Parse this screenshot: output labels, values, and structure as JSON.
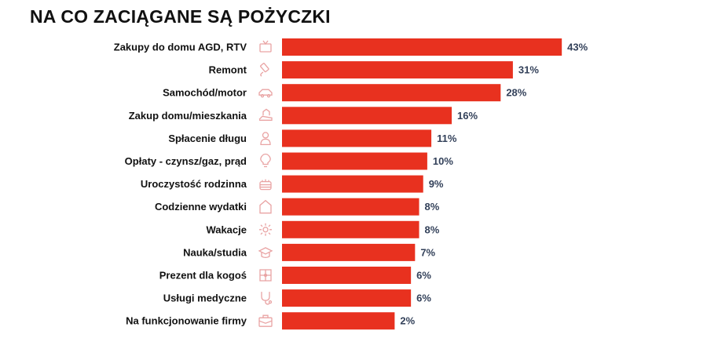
{
  "chart_data": {
    "type": "bar",
    "orientation": "horizontal",
    "title": "NA CO ZACIĄGANE SĄ POŻYCZKI",
    "categories": [
      "Zakupy do domu AGD, RTV",
      "Remont",
      "Samochód/motor",
      "Zakup domu/mieszkania",
      "Spłacenie długu",
      "Opłaty - czynsz/gaz, prąd",
      "Uroczystość rodzinna",
      "Codzienne wydatki",
      "Wakacje",
      "Nauka/studia",
      "Prezent dla kogoś",
      "Usługi medyczne",
      "Na funkcjonowanie firmy"
    ],
    "values": [
      43,
      31,
      28,
      16,
      11,
      10,
      9,
      8,
      8,
      7,
      6,
      6,
      2
    ],
    "labels": [
      "43%",
      "31%",
      "28%",
      "16%",
      "11%",
      "10%",
      "9%",
      "8%",
      "8%",
      "7%",
      "6%",
      "6%",
      "2%"
    ],
    "icons": [
      "tv-icon",
      "paint-roller-icon",
      "car-icon",
      "house-hand-icon",
      "person-icon",
      "lightbulb-icon",
      "cake-icon",
      "house-icon",
      "sun-icon",
      "graduation-cap-icon",
      "gift-icon",
      "stethoscope-icon",
      "briefcase-icon"
    ],
    "unit": "%",
    "grid": false,
    "legend": "none",
    "colors": {
      "bar": "#e8311f",
      "value_label": "#33415a",
      "icon": "#e9a3a3"
    }
  }
}
